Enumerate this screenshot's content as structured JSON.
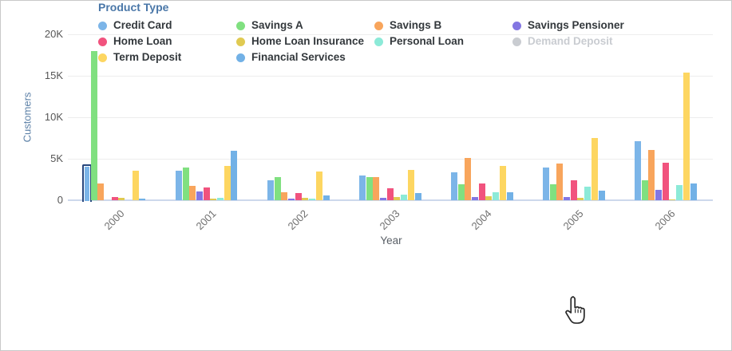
{
  "chart": {
    "y_axis": {
      "title": "Customers",
      "ticks": [
        {
          "label": "0",
          "value": 0
        },
        {
          "label": "5K",
          "value": 5000
        },
        {
          "label": "10K",
          "value": 10000
        },
        {
          "label": "15K",
          "value": 15000
        },
        {
          "label": "20K",
          "value": 20000
        }
      ]
    },
    "x_axis": {
      "title": "Year"
    },
    "legend": {
      "title": "Product Type"
    },
    "icons": {
      "cursor": "hand-pointer-icon"
    }
  },
  "chart_data": {
    "type": "bar",
    "title": "",
    "xlabel": "Year",
    "ylabel": "Customers",
    "ylim": [
      0,
      20000
    ],
    "grid": "horizontal",
    "legend_position": "bottom",
    "legend_title": "Product Type",
    "categories": [
      "2000",
      "2001",
      "2002",
      "2003",
      "2004",
      "2005",
      "2006"
    ],
    "selected_point": {
      "series": "Credit Card",
      "category": "2000",
      "border_color": "#27477e"
    },
    "series": [
      {
        "name": "Credit Card",
        "color": "#7cb5e8",
        "values": [
          4300,
          3600,
          2400,
          3000,
          3400,
          3900,
          7100
        ]
      },
      {
        "name": "Savings A",
        "color": "#80e080",
        "values": [
          18000,
          3900,
          2800,
          2800,
          1900,
          1900,
          2400
        ]
      },
      {
        "name": "Savings B",
        "color": "#f8a55c",
        "values": [
          2000,
          1700,
          950,
          2800,
          5100,
          4400,
          6100
        ]
      },
      {
        "name": "Savings Pensioner",
        "color": "#8376e2",
        "values": [
          0,
          1100,
          200,
          300,
          350,
          400,
          1300
        ]
      },
      {
        "name": "Home Loan",
        "color": "#f1537e",
        "values": [
          400,
          1500,
          850,
          1400,
          2000,
          2400,
          4500
        ]
      },
      {
        "name": "Home Loan Insurance",
        "color": "#e0ca52",
        "values": [
          250,
          150,
          250,
          400,
          500,
          300,
          100
        ]
      },
      {
        "name": "Personal Loan",
        "color": "#8cead8",
        "values": [
          0,
          300,
          200,
          700,
          1000,
          1600,
          1800
        ]
      },
      {
        "name": "Demand Deposit",
        "color": "#c9ccd1",
        "values": [],
        "disabled": true
      },
      {
        "name": "Term Deposit",
        "color": "#fdd661",
        "values": [
          3600,
          4100,
          3500,
          3700,
          4100,
          7500,
          15400
        ]
      },
      {
        "name": "Financial Services",
        "color": "#72b1e6",
        "values": [
          150,
          6000,
          600,
          900,
          1000,
          1200,
          2000
        ]
      }
    ]
  }
}
